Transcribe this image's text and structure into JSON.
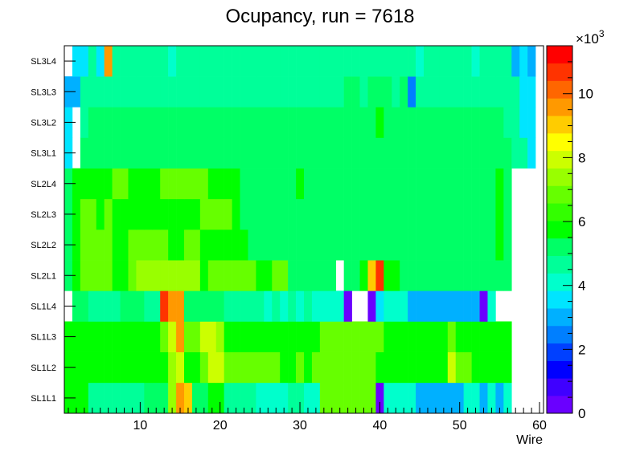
{
  "chart_data": {
    "type": "heatmap",
    "title": "Ocupancy, run = 7618",
    "xlabel": "Wire",
    "ylabel": "",
    "x_ticks": [
      "10",
      "20",
      "30",
      "40",
      "50",
      "60"
    ],
    "xlim": [
      0.5,
      60.5
    ],
    "zlim": [
      0,
      11500
    ],
    "z_exponent_label": "×10",
    "z_exponent_power": "3",
    "z_ticks": [
      "0",
      "2",
      "4",
      "6",
      "8",
      "10"
    ],
    "rows": [
      "SL1L1",
      "SL1L2",
      "SL1L3",
      "SL1L4",
      "SL2L1",
      "SL2L2",
      "SL2L3",
      "SL2L4",
      "SL3L1",
      "SL3L2",
      "SL3L3",
      "SL3L4"
    ],
    "palette": [
      "#6a00ff",
      "#3f00ff",
      "#0000ff",
      "#0040ff",
      "#007fff",
      "#00b0ff",
      "#00e5ff",
      "#00ffcc",
      "#00ff99",
      "#00ff66",
      "#00ff00",
      "#33ff00",
      "#66ff00",
      "#99ff00",
      "#ccff00",
      "#ffff00",
      "#ffcc00",
      "#ff9900",
      "#ff6600",
      "#ff3300",
      "#ff0000"
    ],
    "rows_data": {
      "SL1L1": {
        "base": 4400,
        "wires": 56,
        "overrides": {
          "1": 5700,
          "2": 5700,
          "3": 5700,
          "4": 4400,
          "9": 4400,
          "10": 4400,
          "11": 5000,
          "12": 5000,
          "13": 5000,
          "14": 7600,
          "15": 9500,
          "16": 8900,
          "17": 5000,
          "18": 5000,
          "19": 5700,
          "20": 5700,
          "21": 4400,
          "22": 4400,
          "23": 4400,
          "24": 4400,
          "25": 4000,
          "26": 4000,
          "27": 4000,
          "28": 4000,
          "29": 4400,
          "30": 4400,
          "31": 4000,
          "32": 4000,
          "33": 7000,
          "34": 7000,
          "35": 7000,
          "36": 7000,
          "37": 7000,
          "38": 7000,
          "39": 7000,
          "40": 500,
          "41": 4000,
          "42": 4000,
          "43": 4000,
          "44": 4000,
          "45": 3200,
          "46": 3200,
          "47": 3200,
          "48": 3200,
          "49": 3200,
          "50": 3200,
          "51": 4000,
          "52": 4000,
          "53": 3200,
          "54": 4000,
          "55": 3200,
          "56": 4000
        }
      },
      "SL1L2": {
        "base": 6000,
        "wires": 56,
        "overrides": {
          "14": 7600,
          "15": 8200,
          "16": 6000,
          "17": 6000,
          "18": 7000,
          "19": 8200,
          "20": 8200,
          "21": 6600,
          "22": 6600,
          "23": 6600,
          "24": 6600,
          "25": 6600,
          "26": 6600,
          "27": 6600,
          "28": 6000,
          "29": 6000,
          "30": 6600,
          "31": 6000,
          "32": 6600,
          "33": 7000,
          "34": 7000,
          "35": 7000,
          "36": 7000,
          "37": 7000,
          "38": 7000,
          "39": 7000,
          "40": 6000,
          "49": 8200,
          "50": 6600,
          "51": 6600
        }
      },
      "SL1L3": {
        "base": 6000,
        "wires": 56,
        "overrides": {
          "13": 6600,
          "14": 8200,
          "15": 9500,
          "16": 6600,
          "17": 6600,
          "18": 8200,
          "19": 8200,
          "20": 7600,
          "21": 6000,
          "22": 6000,
          "33": 7000,
          "34": 7000,
          "35": 7000,
          "36": 7000,
          "37": 7000,
          "38": 7000,
          "39": 7000,
          "40": 7000,
          "49": 6600
        }
      },
      "SL1L4": {
        "base": 4400,
        "wires": 56,
        "overrides": {
          "1": null,
          "2": 5000,
          "3": 5000,
          "8": 5000,
          "9": 5000,
          "10": 5000,
          "13": 10900,
          "14": 9500,
          "15": 9500,
          "16": 5000,
          "17": 5000,
          "18": 5000,
          "19": 5000,
          "20": 5000,
          "21": 4400,
          "22": 4400,
          "23": 4400,
          "24": 4400,
          "25": 4400,
          "26": 4000,
          "27": 4400,
          "28": 4000,
          "29": 4400,
          "30": 4000,
          "31": 4400,
          "32": 4000,
          "33": 4000,
          "34": 4000,
          "35": 4000,
          "36": 500,
          "37": null,
          "38": null,
          "39": 500,
          "40": 3500,
          "41": 4000,
          "42": 4000,
          "43": 4000,
          "44": 3200,
          "45": 3200,
          "46": 3200,
          "47": 3200,
          "48": 3200,
          "49": 3200,
          "50": 3200,
          "51": 3200,
          "52": 3200,
          "53": 500,
          "54": 4000,
          "55": null,
          "56": null
        }
      },
      "SL2L1": {
        "base": 6600,
        "wires": 56,
        "overrides": {
          "1": 5000,
          "2": 6000,
          "3": 7000,
          "4": 7000,
          "5": 7000,
          "6": 7000,
          "7": 6000,
          "8": 6000,
          "9": 6600,
          "10": 7600,
          "11": 7600,
          "12": 7600,
          "13": 7600,
          "14": 7600,
          "15": 7600,
          "16": 7600,
          "17": 7600,
          "18": 6000,
          "19": 6600,
          "20": 6600,
          "21": 6600,
          "22": 6600,
          "23": 6600,
          "24": 6600,
          "25": 6000,
          "26": 6000,
          "27": 6600,
          "28": 6600,
          "29": 5400,
          "30": 5400,
          "31": 5400,
          "32": 5400,
          "33": 5400,
          "34": 5400,
          "35": null,
          "36": 5400,
          "37": 5400,
          "38": 6000,
          "39": 8800,
          "40": 10900,
          "41": 6000,
          "42": 6000,
          "43": 5400,
          "44": 5400,
          "45": 5400,
          "46": 5400,
          "47": 5400,
          "48": 5400,
          "49": 5400,
          "50": 5400,
          "51": 5400,
          "52": 5400,
          "53": 5400,
          "54": 5000,
          "55": 5000,
          "56": 5000
        }
      },
      "SL2L2": {
        "base": 6600,
        "wires": 56,
        "overrides": {
          "1": 5000,
          "2": 6000,
          "3": 7000,
          "4": 7000,
          "5": 7000,
          "6": 6600,
          "7": 6000,
          "8": 6000,
          "12": 7000,
          "13": 7000,
          "14": 6000,
          "15": 6000,
          "16": 7000,
          "17": 6600,
          "18": 6000,
          "19": 6000,
          "20": 6000,
          "21": 6000,
          "22": 6000,
          "23": 6000,
          "24": 5400,
          "25": 5400,
          "26": 5400,
          "27": 5400,
          "28": 5400,
          "29": 5400,
          "30": 5400,
          "31": 5400,
          "32": 5400,
          "33": 5400,
          "34": 5400,
          "35": 5400,
          "36": 5400,
          "37": 5400,
          "38": 5400,
          "39": 5400,
          "40": 5400,
          "41": 5400,
          "42": 5400,
          "43": 5400,
          "44": 5400,
          "45": 5400,
          "46": 5400,
          "47": 5000,
          "48": 5000,
          "49": 5400,
          "50": 5000,
          "51": 5000,
          "52": 5000,
          "53": 5400,
          "54": 5000,
          "55": 6000,
          "56": 5400
        }
      },
      "SL2L3": {
        "base": 6000,
        "wires": 56,
        "overrides": {
          "1": 5000,
          "2": 6000,
          "3": 6600,
          "4": 6600,
          "5": 6000,
          "6": 6600,
          "7": 6000,
          "8": 6000,
          "18": 6600,
          "19": 6600,
          "20": 6600,
          "21": 6600,
          "22": 6000,
          "23": 5400,
          "24": 5400,
          "25": 5400,
          "26": 5400,
          "27": 5400,
          "28": 5400,
          "29": 5400,
          "30": 5400,
          "31": 5400,
          "32": 5400,
          "33": 5400,
          "34": 5400,
          "35": 5400,
          "36": 5400,
          "37": 5400,
          "38": 5400,
          "39": 5400,
          "40": 5400,
          "41": 5400,
          "42": 5400,
          "43": 5400,
          "44": 5400,
          "45": 5000,
          "46": 5000,
          "47": 5000,
          "48": 5000,
          "49": 5000,
          "50": 5000,
          "51": 5000,
          "52": 5400,
          "53": 5400,
          "54": 5400,
          "55": 6000,
          "56": 5400
        }
      },
      "SL2L4": {
        "base": 6000,
        "wires": 56,
        "overrides": {
          "1": 5000,
          "2": 6000,
          "3": 6000,
          "4": 6000,
          "5": 6000,
          "6": 6000,
          "7": 6600,
          "8": 6600,
          "9": 6000,
          "10": 6000,
          "13": 6600,
          "14": 6600,
          "15": 6600,
          "16": 6600,
          "17": 6600,
          "18": 6600,
          "19": 6000,
          "20": 6000,
          "21": 6000,
          "22": 6000,
          "23": 5400,
          "24": 5400,
          "25": 5400,
          "26": 5400,
          "27": 5400,
          "28": 5400,
          "29": 5400,
          "30": 6000,
          "31": 5400,
          "32": 5400,
          "33": 5400,
          "34": 5400,
          "35": 5400,
          "36": 5400,
          "37": 5400,
          "38": 5400,
          "39": 5400,
          "40": 5400,
          "41": 5400,
          "42": 5400,
          "43": 5400,
          "44": 5400,
          "45": 5400,
          "46": 5400,
          "47": 5000,
          "48": 5000,
          "49": 5000,
          "50": 5000,
          "51": 5000,
          "52": 5000,
          "53": 5000,
          "54": 5400,
          "55": 6000,
          "56": 5400
        }
      },
      "SL3L1": {
        "base": 5400,
        "wires": 59,
        "overrides": {
          "1": 3500,
          "2": null,
          "3": 5000,
          "4": 5000,
          "5": 5400,
          "6": 5400,
          "7": 5400,
          "8": 5000,
          "9": 5000,
          "10": 5400,
          "11": 5400,
          "12": 5400,
          "13": 5400,
          "14": 5400,
          "15": 5400,
          "16": 5400,
          "17": 5400,
          "18": 5400,
          "19": 5400,
          "20": 5400,
          "21": 5400,
          "22": 5400,
          "23": 5000,
          "24": 5400,
          "25": 5400,
          "26": 5400,
          "27": 5400,
          "28": 5400,
          "29": 5400,
          "30": 5400,
          "31": 5400,
          "32": 5400,
          "33": 5400,
          "34": 5400,
          "35": 5400,
          "36": 5400,
          "37": 5400,
          "38": 5400,
          "39": 5400,
          "40": 5400,
          "41": 5400,
          "42": 5400,
          "43": 5400,
          "44": 5400,
          "45": 5000,
          "46": 5000,
          "47": 5400,
          "48": 5400,
          "49": 5400,
          "50": 5000,
          "51": 5000,
          "52": 5400,
          "53": 5000,
          "54": 5000,
          "55": 5000,
          "56": 5000,
          "57": 4400,
          "58": 4400,
          "59": 3500
        }
      },
      "SL3L2": {
        "base": 5000,
        "wires": 59,
        "overrides": {
          "1": 3500,
          "2": null,
          "3": 4400,
          "4": 5000,
          "5": 5000,
          "6": 5000,
          "7": 5000,
          "8": 5000,
          "9": 5000,
          "10": 5000,
          "11": 5000,
          "12": 5400,
          "13": 5000,
          "14": 5000,
          "15": 5000,
          "16": 5000,
          "17": 5000,
          "18": 5000,
          "19": 5400,
          "20": 5400,
          "21": 5400,
          "22": 5400,
          "23": 5400,
          "24": 5400,
          "25": 5000,
          "26": 5000,
          "27": 5000,
          "28": 5400,
          "29": 5400,
          "30": 5000,
          "31": 5400,
          "32": 5400,
          "33": 5400,
          "34": 5000,
          "35": 5400,
          "36": 5400,
          "37": 5400,
          "38": 5400,
          "39": 5000,
          "40": 6000,
          "41": 5400,
          "42": 5400,
          "43": 5400,
          "44": 5000,
          "45": 5000,
          "46": 5400,
          "47": 5400,
          "48": 5400,
          "49": 5000,
          "50": 5400,
          "51": 5000,
          "52": 5000,
          "53": 5000,
          "54": 5000,
          "55": 5000,
          "56": 4400,
          "57": 4400,
          "58": 3500,
          "59": 3500
        }
      },
      "SL3L3": {
        "base": 4400,
        "wires": 59,
        "overrides": {
          "1": 3200,
          "2": 3200,
          "3": 4400,
          "36": 5000,
          "37": 5000,
          "39": 5000,
          "40": 5400,
          "41": 5400,
          "43": 5000,
          "44": 2200,
          "45": 4400,
          "57": 4400,
          "58": 3500,
          "59": 3500
        }
      },
      "SL3L4": {
        "base": 4400,
        "wires": 59,
        "overrides": {
          "1": null,
          "2": 3500,
          "3": 3500,
          "4": 4400,
          "5": 3500,
          "6": 9500,
          "7": 4400,
          "8": 4400,
          "9": 4400,
          "10": 4400,
          "11": 4400,
          "12": 4400,
          "13": 4400,
          "14": 4000,
          "15": 4400,
          "44": 4400,
          "45": 4000,
          "52": 4000,
          "53": 4400,
          "54": 4400,
          "55": 4400,
          "56": 4400,
          "57": 3200,
          "58": 3500,
          "59": 3200
        }
      }
    }
  }
}
